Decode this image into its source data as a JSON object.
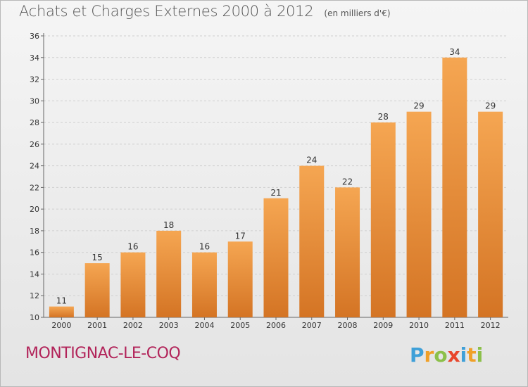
{
  "header": {
    "title": "Achats et Charges Externes 2000 à 2012",
    "subtitle": "(en milliers d'€)"
  },
  "footer": {
    "commune": "MONTIGNAC-LE-COQ",
    "logo_letters": [
      {
        "char": "P",
        "color": "#3fa0d8"
      },
      {
        "char": "r",
        "color": "#f0a028"
      },
      {
        "char": "o",
        "color": "#8cc04a"
      },
      {
        "char": "x",
        "color": "#e8462c"
      },
      {
        "char": "i",
        "color": "#3fa0d8"
      },
      {
        "char": "t",
        "color": "#f0a028"
      },
      {
        "char": "i",
        "color": "#8cc04a"
      }
    ]
  },
  "colors": {
    "bar_top": "#f5a652",
    "bar_bottom": "#d47424",
    "grid": "#cfcfcf",
    "axis_text": "#333333",
    "commune": "#b2245a"
  },
  "chart_data": {
    "type": "bar",
    "title": "Achats et Charges Externes 2000 à 2012",
    "subtitle": "(en milliers d'€)",
    "categories": [
      "2000",
      "2001",
      "2002",
      "2003",
      "2004",
      "2005",
      "2006",
      "2007",
      "2008",
      "2009",
      "2010",
      "2011",
      "2012"
    ],
    "values": [
      11,
      15,
      16,
      18,
      16,
      17,
      21,
      24,
      22,
      28,
      29,
      34,
      29
    ],
    "ylim": [
      10,
      36
    ],
    "yticks": [
      10,
      12,
      14,
      16,
      18,
      20,
      22,
      24,
      26,
      28,
      30,
      32,
      34,
      36
    ],
    "grid": true,
    "data_labels": true
  }
}
